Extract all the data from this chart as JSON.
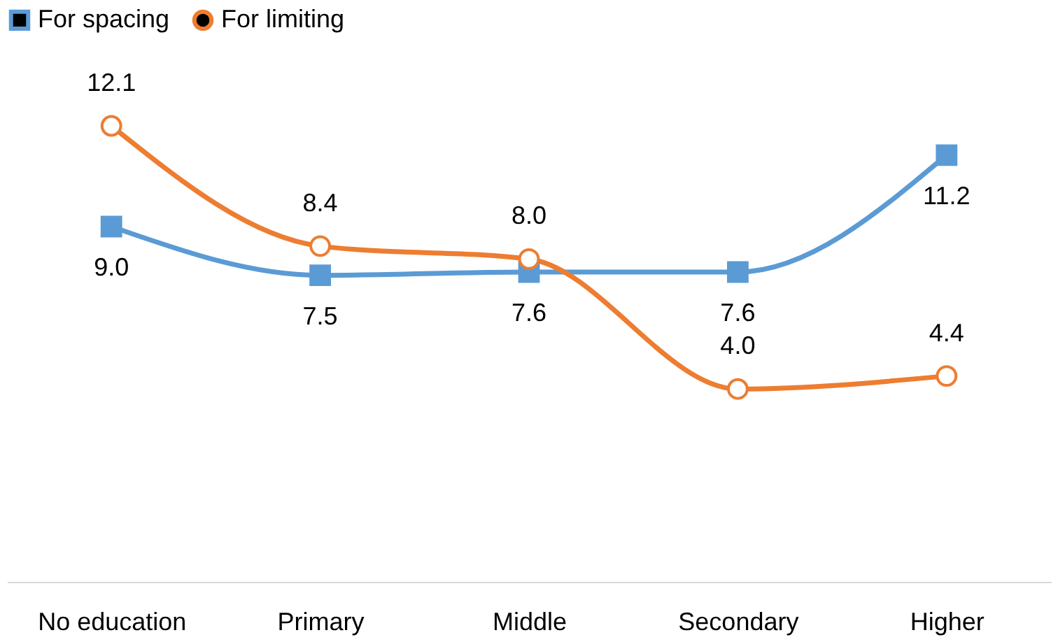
{
  "chart_data": {
    "type": "line",
    "categories": [
      "No education",
      "Primary",
      "Middle",
      "Secondary",
      "Higher"
    ],
    "series": [
      {
        "name": "For spacing",
        "color": "#5b9bd5",
        "marker": "square",
        "values": [
          9.0,
          7.5,
          7.6,
          7.6,
          11.2
        ],
        "value_labels": [
          "9.0",
          "7.5",
          "7.6",
          "7.6",
          "11.2"
        ]
      },
      {
        "name": "For limiting",
        "color": "#ed7d31",
        "marker": "circle",
        "values": [
          12.1,
          8.4,
          8.0,
          4.0,
          4.4
        ],
        "value_labels": [
          "12.1",
          "8.4",
          "8.0",
          "4.0",
          "4.4"
        ]
      }
    ],
    "legend": "top",
    "grid": false
  }
}
